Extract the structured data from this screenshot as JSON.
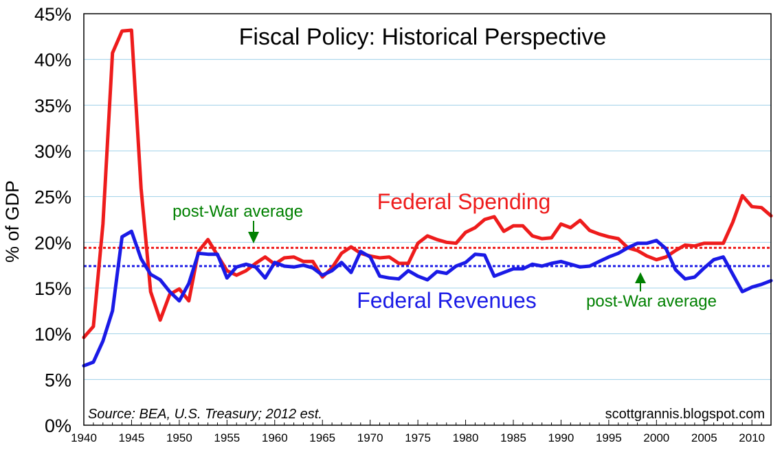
{
  "chart_data": {
    "type": "line",
    "title": "Fiscal Policy: Historical Perspective",
    "ylabel": "% of GDP",
    "xlabel": "",
    "xlim": [
      1940,
      2012
    ],
    "ylim": [
      0,
      45
    ],
    "y_ticks": [
      "0%",
      "5%",
      "10%",
      "15%",
      "20%",
      "25%",
      "30%",
      "35%",
      "40%",
      "45%"
    ],
    "x_ticks": [
      "1940",
      "1945",
      "1950",
      "1955",
      "1960",
      "1965",
      "1970",
      "1975",
      "1980",
      "1985",
      "1990",
      "1995",
      "2000",
      "2005",
      "2010"
    ],
    "grid": true,
    "x": [
      1940,
      1941,
      1942,
      1943,
      1944,
      1945,
      1946,
      1947,
      1948,
      1949,
      1950,
      1951,
      1952,
      1953,
      1954,
      1955,
      1956,
      1957,
      1958,
      1959,
      1960,
      1961,
      1962,
      1963,
      1964,
      1965,
      1966,
      1967,
      1968,
      1969,
      1970,
      1971,
      1972,
      1973,
      1974,
      1975,
      1976,
      1977,
      1978,
      1979,
      1980,
      1981,
      1982,
      1983,
      1984,
      1985,
      1986,
      1987,
      1988,
      1989,
      1990,
      1991,
      1992,
      1993,
      1994,
      1995,
      1996,
      1997,
      1998,
      1999,
      2000,
      2001,
      2002,
      2003,
      2004,
      2005,
      2006,
      2007,
      2008,
      2009,
      2010,
      2011,
      2012
    ],
    "series": [
      {
        "name": "Federal Spending",
        "color": "#ee1c1c",
        "values": [
          9.6,
          10.8,
          22.0,
          40.7,
          43.1,
          43.2,
          25.9,
          14.6,
          11.5,
          14.3,
          14.9,
          13.6,
          19.0,
          20.3,
          18.6,
          16.9,
          16.4,
          16.9,
          17.7,
          18.4,
          17.6,
          18.3,
          18.4,
          17.9,
          17.9,
          16.2,
          17.2,
          18.8,
          19.5,
          18.8,
          18.5,
          18.3,
          18.4,
          17.7,
          17.7,
          19.9,
          20.7,
          20.3,
          20.0,
          19.9,
          21.1,
          21.6,
          22.5,
          22.8,
          21.2,
          21.8,
          21.8,
          20.7,
          20.4,
          20.5,
          22.0,
          21.6,
          22.4,
          21.3,
          20.9,
          20.6,
          20.4,
          19.4,
          19.1,
          18.5,
          18.1,
          18.4,
          19.1,
          19.7,
          19.6,
          19.9,
          19.9,
          19.9,
          22.2,
          25.1,
          23.9,
          23.8,
          22.9
        ]
      },
      {
        "name": "Federal Revenues",
        "color": "#1a1ae6",
        "values": [
          6.5,
          6.9,
          9.2,
          12.5,
          20.6,
          21.2,
          18.2,
          16.5,
          15.9,
          14.6,
          13.6,
          15.5,
          18.8,
          18.7,
          18.7,
          16.1,
          17.3,
          17.6,
          17.3,
          16.1,
          17.8,
          17.4,
          17.3,
          17.5,
          17.2,
          16.4,
          16.9,
          17.8,
          16.7,
          19.0,
          18.4,
          16.3,
          16.1,
          16.0,
          16.9,
          16.3,
          15.9,
          16.8,
          16.6,
          17.4,
          17.8,
          18.7,
          18.6,
          16.3,
          16.7,
          17.1,
          17.1,
          17.6,
          17.4,
          17.7,
          17.9,
          17.6,
          17.3,
          17.4,
          17.9,
          18.4,
          18.8,
          19.4,
          19.9,
          19.9,
          20.2,
          19.3,
          17.0,
          16.0,
          16.2,
          17.2,
          18.1,
          18.4,
          16.5,
          14.6,
          15.1,
          15.4,
          15.8
        ]
      }
    ],
    "averages": [
      {
        "series": "Federal Spending",
        "value": 19.4
      },
      {
        "series": "Federal Revenues",
        "value": 17.4
      }
    ],
    "series_labels": {
      "spending": "Federal Spending",
      "revenues": "Federal Revenues"
    },
    "annotations": {
      "postwar_average_top": "post-War average",
      "postwar_average_bottom": "post-War average"
    },
    "source": "Source:  BEA, U.S. Treasury; 2012 est.",
    "credit": "scottgrannis.blogspot.com"
  }
}
